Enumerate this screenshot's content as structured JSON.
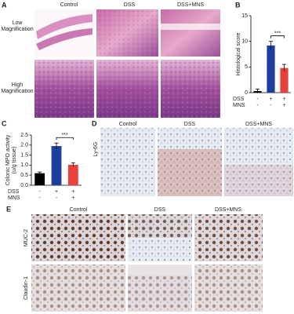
{
  "panel_a": {
    "label": "A",
    "columns": [
      "Control",
      "DSS",
      "DSS+MNS"
    ],
    "rows": [
      "Low Magnification",
      "High Magnification"
    ]
  },
  "panel_d": {
    "label": "D",
    "columns": [
      "Control",
      "DSS",
      "DSS+MNS"
    ],
    "rows": [
      "Ly-6G"
    ]
  },
  "panel_e": {
    "label": "E",
    "columns": [
      "Control",
      "DSS",
      "DSS+MNS"
    ],
    "rows": [
      "MUC-2",
      "Claudin-1"
    ]
  },
  "chart_data": [
    {
      "type": "bar",
      "panel_label": "B",
      "ylabel": [
        "Histological score"
      ],
      "categories": [
        null,
        null,
        null
      ],
      "values": [
        0.3,
        9.2,
        4.8
      ],
      "errors": [
        0.4,
        0.8,
        0.7
      ],
      "colors": [
        "#000000",
        "#1c3f9e",
        "#e8423d"
      ],
      "ylim": [
        0,
        15
      ],
      "yticks": [
        0,
        5,
        10,
        15
      ],
      "significance": "***",
      "treatments": [
        {
          "name": "DSS",
          "signs": [
            "-",
            "+",
            "+"
          ]
        },
        {
          "name": "MNS",
          "signs": [
            "-",
            "-",
            "+"
          ]
        }
      ]
    },
    {
      "type": "bar",
      "panel_label": "C",
      "ylabel": [
        "Colonic MPO activity",
        "(u/g tissue)"
      ],
      "categories": [
        null,
        null,
        null
      ],
      "values": [
        0.6,
        1.95,
        1.02
      ],
      "errors": [
        0.06,
        0.15,
        0.1
      ],
      "colors": [
        "#000000",
        "#1c3f9e",
        "#e8423d"
      ],
      "ylim": [
        0,
        2.5
      ],
      "yticks": [
        {
          "value": 0,
          "label": "0.0"
        },
        {
          "value": 0.5,
          "label": "0.5"
        },
        {
          "value": 1,
          "label": "1.0"
        },
        {
          "value": 1.5,
          "label": "1.5"
        },
        {
          "value": 2,
          "label": "2.0"
        },
        {
          "value": 2.5,
          "label": "2.5"
        }
      ],
      "significance": "***",
      "treatments": [
        {
          "name": "DSS",
          "signs": [
            "-",
            "+",
            "+"
          ]
        },
        {
          "name": "MNS",
          "signs": [
            "-",
            "-",
            "+"
          ]
        }
      ]
    }
  ]
}
